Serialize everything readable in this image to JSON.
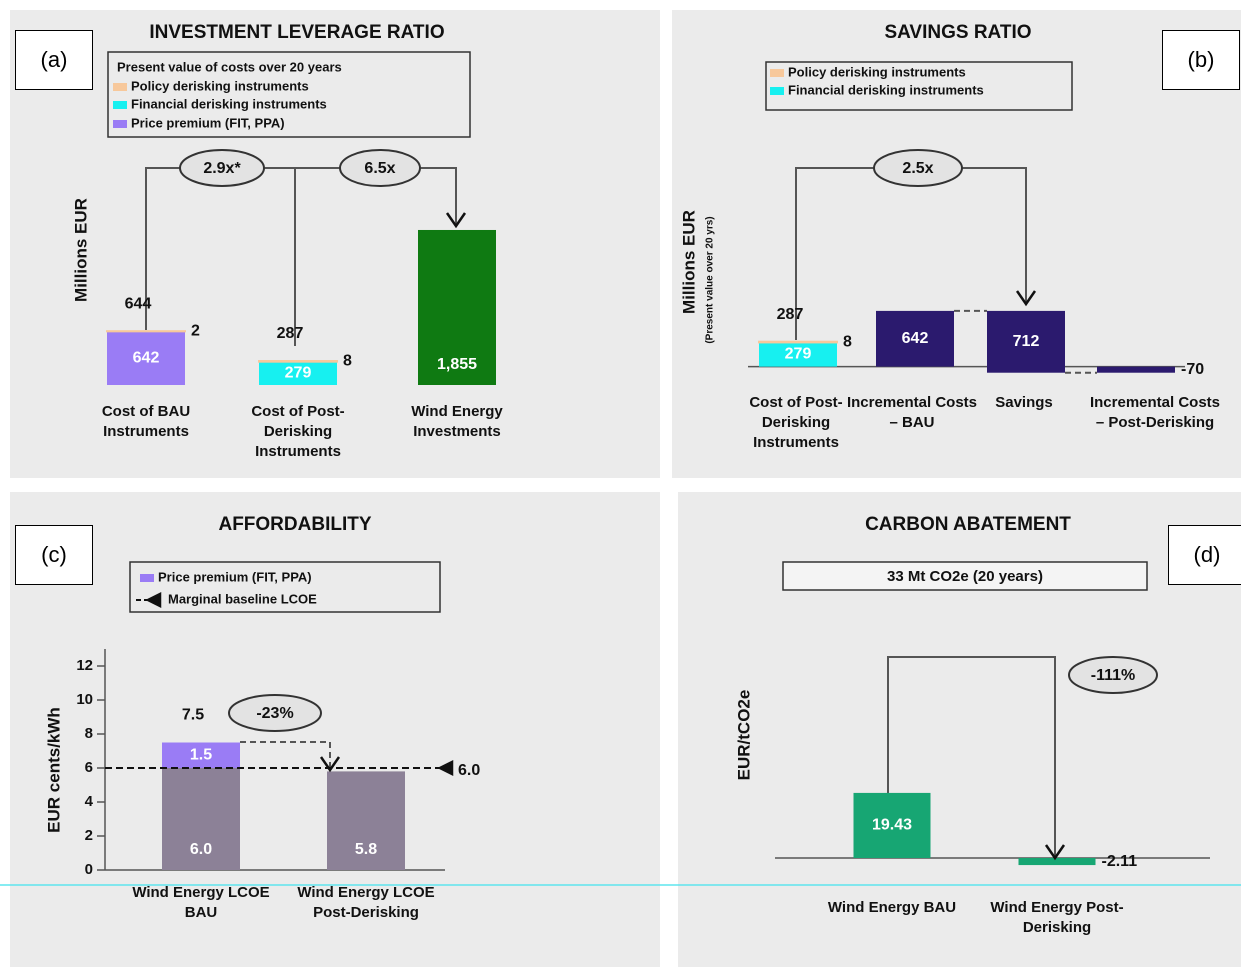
{
  "chart_data": [
    {
      "type": "bar",
      "panel": "(a)",
      "title": "INVESTMENT LEVERAGE RATIO",
      "legend_title": "Present value of costs over 20 years",
      "y_label": "Millions EUR",
      "categories": [
        "Cost of BAU Instruments",
        "Cost of Post-Derisking Instruments",
        "Wind Energy Investments"
      ],
      "series": [
        {
          "name": "Policy derisking instruments",
          "color": "#f7c89b",
          "values": [
            2,
            8,
            null
          ]
        },
        {
          "name": "Financial derisking instruments",
          "color": "#17f0f0",
          "values": [
            null,
            279,
            null
          ]
        },
        {
          "name": "Price premium (FIT, PPA)",
          "color": "#9a7cf5",
          "values": [
            642,
            null,
            null
          ]
        },
        {
          "color": "#0f7a12",
          "values": [
            null,
            null,
            1855
          ],
          "value_labels": [
            null,
            null,
            "1,855"
          ]
        }
      ],
      "totals": [
        644,
        287,
        null
      ],
      "annotations": [
        "2.9x*",
        "6.5x"
      ],
      "ylim": [
        0,
        2800
      ]
    },
    {
      "type": "waterfall",
      "panel": "(b)",
      "title": "SAVINGS RATIO",
      "y_label": "Millions EUR",
      "y_sublabel": "(Present value over 20 yrs)",
      "categories": [
        "Cost of Post-Derisking Instruments",
        "Incremental Costs – BAU",
        "Savings",
        "Incremental Costs – Post-Derisking"
      ],
      "series": [
        {
          "name": "Policy derisking instruments",
          "color": "#f7c89b",
          "values": [
            8,
            null,
            null,
            null
          ]
        },
        {
          "name": "Financial derisking instruments",
          "color": "#17f0f0",
          "values": [
            279,
            null,
            null,
            null
          ]
        },
        {
          "color": "#2b1a6e",
          "values": [
            null,
            642,
            712,
            -70
          ]
        }
      ],
      "totals": [
        287,
        null,
        null,
        null
      ],
      "annotations": [
        "2.5x"
      ],
      "ylim": [
        -200,
        2000
      ]
    },
    {
      "type": "bar",
      "panel": "(c)",
      "title": "AFFORDABILITY",
      "y_label": "EUR cents/kWh",
      "categories": [
        "Wind Energy LCOE BAU",
        "Wind Energy LCOE Post-Derisking"
      ],
      "series": [
        {
          "name": "Price premium (FIT, PPA)",
          "color": "#9a7cf5",
          "values": [
            1.5,
            null
          ],
          "value_labels": [
            "1.5",
            null
          ]
        },
        {
          "color": "#8c8197",
          "values": [
            6.0,
            5.8
          ],
          "value_labels": [
            "6.0",
            "5.8"
          ]
        }
      ],
      "totals": [
        7.5,
        null
      ],
      "baseline": {
        "name": "Marginal baseline LCOE",
        "value": 6.0,
        "value_label": "6.0"
      },
      "annotations": [
        "-23%"
      ],
      "ylim": [
        0,
        13
      ],
      "yticks": [
        0,
        2,
        4,
        6,
        8,
        10,
        12
      ]
    },
    {
      "type": "bar",
      "panel": "(d)",
      "title": "CARBON ABATEMENT",
      "subtitle": "33 Mt CO2e (20 years)",
      "y_label": "EUR/tCO2e",
      "categories": [
        "Wind Energy BAU",
        "Wind Energy Post-Derisking"
      ],
      "series": [
        {
          "color": "#17a673",
          "values": [
            19.43,
            -2.11
          ]
        }
      ],
      "annotations": [
        "-111%"
      ],
      "ylim": [
        -10,
        60
      ]
    }
  ]
}
